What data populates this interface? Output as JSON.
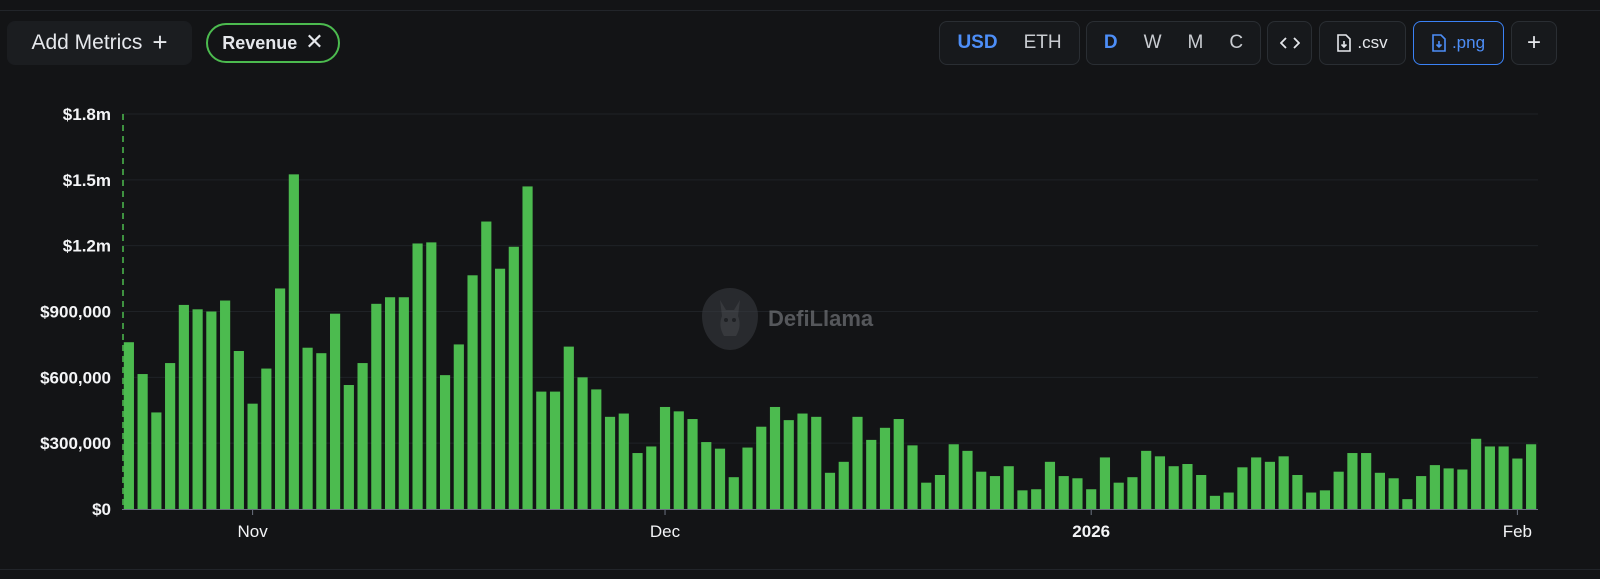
{
  "toolbar": {
    "add_metrics_label": "Add Metrics",
    "add_metrics_icon": "plus-icon",
    "active_metric_label": "Revenue",
    "remove_metric_icon": "close-icon",
    "currency_options": [
      "USD",
      "ETH"
    ],
    "currency_selected": "USD",
    "period_options": [
      "D",
      "W",
      "M",
      "C"
    ],
    "period_selected": "D",
    "embed_icon": "code-icon",
    "csv_label": ".csv",
    "csv_icon": "file-download-icon",
    "png_label": ".png",
    "png_icon": "file-download-icon",
    "add_chart_icon": "plus-icon"
  },
  "watermark": {
    "text": "DefiLlama",
    "icon": "llama-logo-icon"
  },
  "colors": {
    "bar": "#4cbb4f",
    "accent": "#4d8ef7",
    "background": "#131416"
  },
  "chart_data": {
    "type": "bar",
    "title": "",
    "xlabel": "",
    "ylabel": "",
    "ylim": [
      0,
      1800000
    ],
    "y_tick_labels": [
      "$0",
      "$300,000",
      "$600,000",
      "$900,000",
      "$1.2m",
      "$1.5m",
      "$1.8m"
    ],
    "y_tick_values": [
      0,
      300000,
      600000,
      900000,
      1200000,
      1500000,
      1800000
    ],
    "x_tick_labels": [
      {
        "label": "Nov",
        "index": 9,
        "bold": false
      },
      {
        "label": "Dec",
        "index": 39,
        "bold": false
      },
      {
        "label": "2026",
        "index": 70,
        "bold": true
      },
      {
        "label": "Feb",
        "index": 101,
        "bold": false
      }
    ],
    "series": [
      {
        "values": [
          760000,
          615000,
          440000,
          665000,
          930000,
          910000,
          900000,
          950000,
          720000,
          480000,
          640000,
          1005000,
          1525000,
          735000,
          710000,
          890000,
          565000,
          665000,
          935000,
          965000,
          965000,
          1210000,
          1215000,
          610000,
          750000,
          1065000,
          1310000,
          1095000,
          1195000,
          1470000,
          535000,
          535000,
          740000,
          600000,
          545000,
          420000,
          435000,
          255000,
          285000,
          465000,
          445000,
          410000,
          305000,
          275000,
          145000,
          280000,
          375000,
          465000,
          405000,
          435000,
          420000,
          165000,
          215000,
          420000,
          315000,
          370000,
          410000,
          290000,
          120000,
          155000,
          295000,
          265000,
          170000,
          150000,
          195000,
          85000,
          90000,
          215000,
          150000,
          140000,
          90000,
          235000,
          120000,
          145000,
          265000,
          240000,
          195000,
          205000,
          155000,
          60000,
          75000,
          190000,
          235000,
          215000,
          240000,
          155000,
          75000,
          85000,
          170000,
          255000,
          255000,
          165000,
          140000,
          45000,
          150000,
          200000,
          185000,
          180000,
          320000,
          285000,
          285000,
          230000,
          295000
        ]
      }
    ]
  }
}
